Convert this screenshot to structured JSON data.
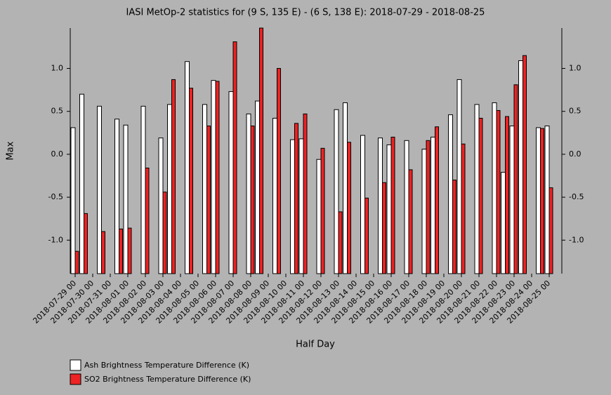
{
  "chart_data": {
    "type": "bar",
    "title": "IASI MetOp-2 statistics for (9 S, 135 E) - (6 S, 138 E): 2018-07-29 - 2018-08-25",
    "x_label": "Half Day",
    "y_label": "Max",
    "categories": [
      "2018-07-29 00",
      null,
      "2018-07-30 00",
      null,
      "2018-07-31 00",
      null,
      "2018-08-01 00",
      null,
      "2018-08-02 00",
      null,
      "2018-08-03 00",
      null,
      "2018-08-04 00",
      null,
      "2018-08-05 00",
      null,
      "2018-08-06 00",
      null,
      "2018-08-07 00",
      null,
      "2018-08-08 00",
      null,
      "2018-08-09 00",
      null,
      "2018-08-10 00",
      null,
      "2018-08-11 00",
      null,
      "2018-08-12 00",
      null,
      "2018-08-13 00",
      null,
      "2018-08-14 00",
      null,
      "2018-08-15 00",
      null,
      "2018-08-16 00",
      null,
      "2018-08-17 00",
      null,
      "2018-08-18 00",
      null,
      "2018-08-19 00",
      null,
      "2018-08-20 00",
      null,
      "2018-08-21 00",
      null,
      "2018-08-22 00",
      null,
      "2018-08-23 00",
      null,
      "2018-08-24 00",
      null,
      "2018-08-25 00"
    ],
    "series": [
      {
        "name": "Ash Brightness Temperature Difference (K)",
        "color": "#ffffff",
        "values": [
          0.31,
          0.7,
          null,
          0.56,
          null,
          0.41,
          0.34,
          null,
          0.56,
          null,
          0.19,
          0.58,
          null,
          1.08,
          null,
          0.58,
          0.86,
          null,
          0.73,
          null,
          0.47,
          0.62,
          null,
          0.42,
          null,
          0.17,
          0.18,
          null,
          -0.06,
          null,
          0.52,
          0.6,
          null,
          0.22,
          null,
          0.19,
          0.11,
          null,
          0.16,
          null,
          0.06,
          0.2,
          null,
          0.46,
          0.87,
          null,
          0.58,
          null,
          0.6,
          -0.21,
          0.33,
          1.09,
          null,
          0.31,
          0.33
        ]
      },
      {
        "name": "SO2 Brightness Temperature Difference (K)",
        "color": "#ee2222",
        "values": [
          -1.13,
          -0.69,
          null,
          -0.9,
          null,
          -0.87,
          -0.86,
          null,
          -0.16,
          null,
          -0.44,
          0.87,
          null,
          0.77,
          null,
          0.33,
          0.85,
          null,
          1.31,
          null,
          0.33,
          1.47,
          null,
          1.0,
          null,
          0.36,
          0.47,
          null,
          0.07,
          null,
          -0.67,
          0.14,
          null,
          -0.51,
          null,
          -0.33,
          0.2,
          null,
          -0.18,
          null,
          0.16,
          0.32,
          null,
          -0.3,
          0.12,
          null,
          0.42,
          null,
          0.51,
          0.44,
          0.81,
          1.15,
          null,
          0.3,
          -0.39
        ]
      }
    ],
    "ylim": [
      -1.39,
      1.47
    ],
    "yticks": [
      {
        "value": -1,
        "label": "-1.0"
      },
      -0.5,
      {
        "value": 0,
        "label": "0.0"
      },
      0.5,
      {
        "value": 1,
        "label": "1.0"
      }
    ]
  }
}
